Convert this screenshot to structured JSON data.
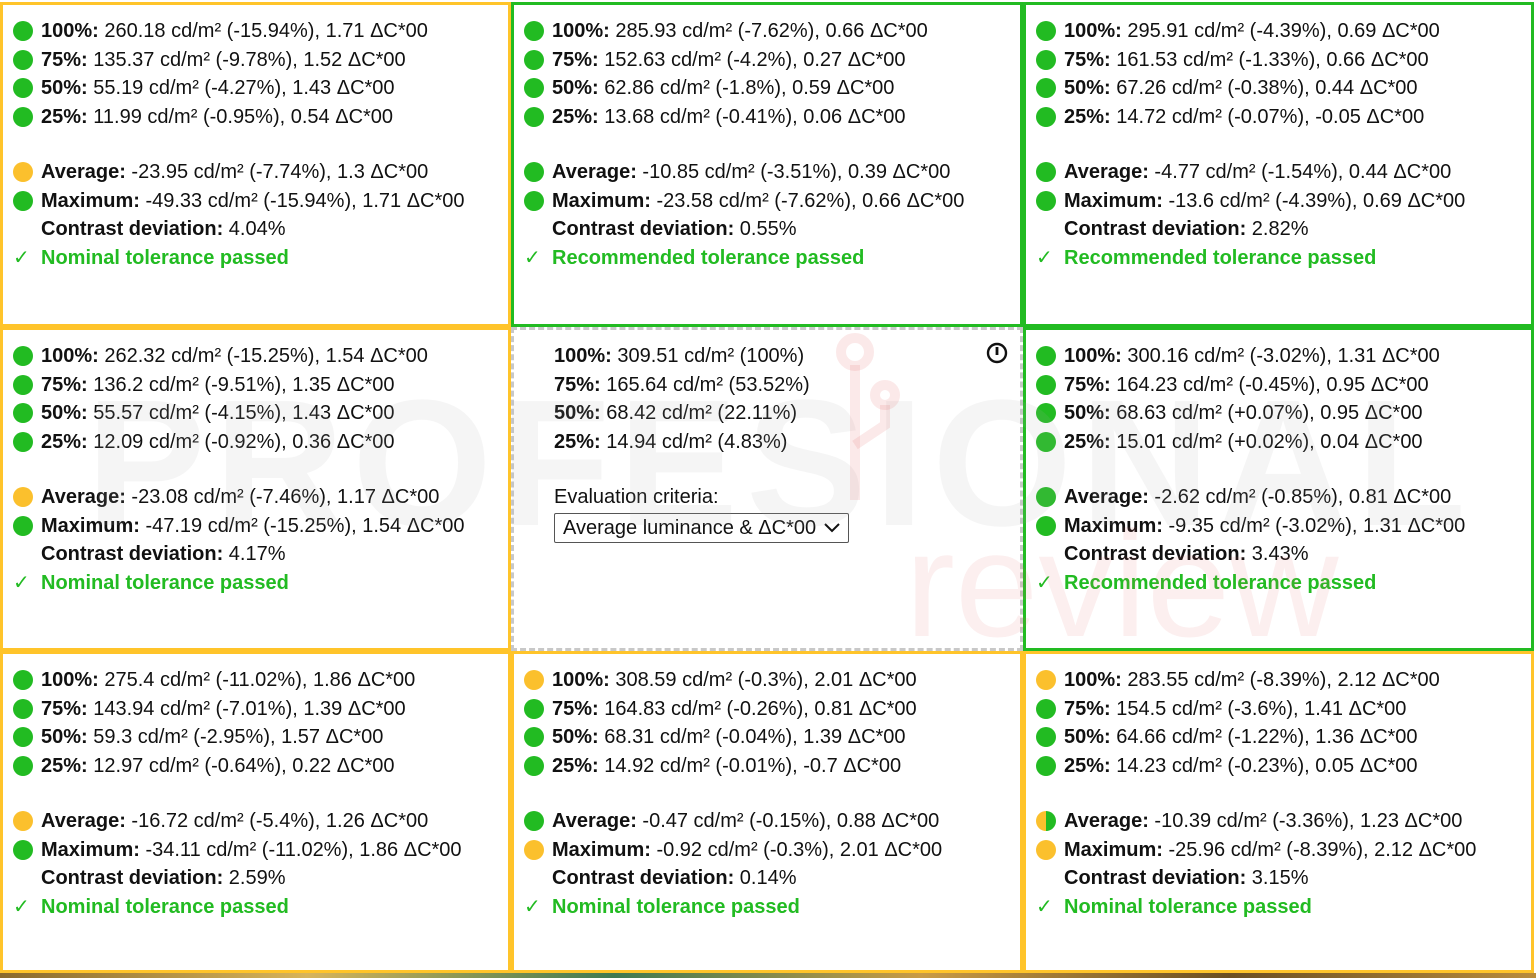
{
  "cells": [
    {
      "lines": [
        {
          "dot": "green",
          "label": "100%:",
          "value": " 260.18 cd/m² (-15.94%), 1.71 ΔC*00"
        },
        {
          "dot": "green",
          "label": "75%:",
          "value": " 135.37 cd/m² (-9.78%), 1.52 ΔC*00"
        },
        {
          "dot": "green",
          "label": "50%:",
          "value": " 55.19 cd/m² (-4.27%), 1.43 ΔC*00"
        },
        {
          "dot": "green",
          "label": "25%:",
          "value": " 11.99 cd/m² (-0.95%), 0.54 ΔC*00"
        }
      ],
      "average": {
        "dot": "yellow",
        "label": "Average:",
        "value": " -23.95 cd/m² (-7.74%), 1.3 ΔC*00"
      },
      "maximum": {
        "dot": "green",
        "label": "Maximum:",
        "value": " -49.33 cd/m² (-15.94%), 1.71 ΔC*00"
      },
      "contrast": {
        "label": "Contrast deviation:",
        "value": " 4.04%"
      },
      "result": "Nominal tolerance passed"
    },
    {
      "lines": [
        {
          "dot": "green",
          "label": "100%:",
          "value": " 285.93 cd/m² (-7.62%), 0.66 ΔC*00"
        },
        {
          "dot": "green",
          "label": "75%:",
          "value": " 152.63 cd/m² (-4.2%), 0.27 ΔC*00"
        },
        {
          "dot": "green",
          "label": "50%:",
          "value": " 62.86 cd/m² (-1.8%), 0.59 ΔC*00"
        },
        {
          "dot": "green",
          "label": "25%:",
          "value": " 13.68 cd/m² (-0.41%), 0.06 ΔC*00"
        }
      ],
      "average": {
        "dot": "green",
        "label": "Average:",
        "value": " -10.85 cd/m² (-3.51%), 0.39 ΔC*00"
      },
      "maximum": {
        "dot": "green",
        "label": "Maximum:",
        "value": " -23.58 cd/m² (-7.62%), 0.66 ΔC*00"
      },
      "contrast": {
        "label": "Contrast deviation:",
        "value": " 0.55%"
      },
      "result": "Recommended tolerance passed"
    },
    {
      "lines": [
        {
          "dot": "green",
          "label": "100%:",
          "value": " 295.91 cd/m² (-4.39%), 0.69 ΔC*00"
        },
        {
          "dot": "green",
          "label": "75%:",
          "value": " 161.53 cd/m² (-1.33%), 0.66 ΔC*00"
        },
        {
          "dot": "green",
          "label": "50%:",
          "value": " 67.26 cd/m² (-0.38%), 0.44 ΔC*00"
        },
        {
          "dot": "green",
          "label": "25%:",
          "value": " 14.72 cd/m² (-0.07%), -0.05 ΔC*00"
        }
      ],
      "average": {
        "dot": "green",
        "label": "Average:",
        "value": " -4.77 cd/m² (-1.54%), 0.44 ΔC*00"
      },
      "maximum": {
        "dot": "green",
        "label": "Maximum:",
        "value": " -13.6 cd/m² (-4.39%), 0.69 ΔC*00"
      },
      "contrast": {
        "label": "Contrast deviation:",
        "value": " 2.82%"
      },
      "result": "Recommended tolerance passed"
    },
    {
      "lines": [
        {
          "dot": "green",
          "label": "100%:",
          "value": " 262.32 cd/m² (-15.25%), 1.54 ΔC*00"
        },
        {
          "dot": "green",
          "label": "75%:",
          "value": " 136.2 cd/m² (-9.51%), 1.35 ΔC*00"
        },
        {
          "dot": "green",
          "label": "50%:",
          "value": " 55.57 cd/m² (-4.15%), 1.43 ΔC*00"
        },
        {
          "dot": "green",
          "label": "25%:",
          "value": " 12.09 cd/m² (-0.92%), 0.36 ΔC*00"
        }
      ],
      "average": {
        "dot": "yellow",
        "label": "Average:",
        "value": " -23.08 cd/m² (-7.46%), 1.17 ΔC*00"
      },
      "maximum": {
        "dot": "green",
        "label": "Maximum:",
        "value": " -47.19 cd/m² (-15.25%), 1.54 ΔC*00"
      },
      "contrast": {
        "label": "Contrast deviation:",
        "value": " 4.17%"
      },
      "result": "Nominal tolerance passed"
    },
    {
      "center": true,
      "lines": [
        {
          "label": "100%:",
          "value": " 309.51 cd/m² (100%)"
        },
        {
          "label": "75%:",
          "value": " 165.64 cd/m² (53.52%)"
        },
        {
          "label": "50%:",
          "value": " 68.42 cd/m² (22.11%)"
        },
        {
          "label": "25%:",
          "value": " 14.94 cd/m² (4.83%)"
        }
      ],
      "eval_label": "Evaluation criteria:",
      "eval_value": "Average luminance & ΔC*00"
    },
    {
      "lines": [
        {
          "dot": "green",
          "label": "100%:",
          "value": " 300.16 cd/m² (-3.02%), 1.31 ΔC*00"
        },
        {
          "dot": "green",
          "label": "75%:",
          "value": " 164.23 cd/m² (-0.45%), 0.95 ΔC*00"
        },
        {
          "dot": "green",
          "label": "50%:",
          "value": " 68.63 cd/m² (+0.07%), 0.95 ΔC*00"
        },
        {
          "dot": "green",
          "label": "25%:",
          "value": " 15.01 cd/m² (+0.02%), 0.04 ΔC*00"
        }
      ],
      "average": {
        "dot": "green",
        "label": "Average:",
        "value": " -2.62 cd/m² (-0.85%), 0.81 ΔC*00"
      },
      "maximum": {
        "dot": "green",
        "label": "Maximum:",
        "value": " -9.35 cd/m² (-3.02%), 1.31 ΔC*00"
      },
      "contrast": {
        "label": "Contrast deviation:",
        "value": " 3.43%"
      },
      "result": "Recommended tolerance passed"
    },
    {
      "lines": [
        {
          "dot": "green",
          "label": "100%:",
          "value": " 275.4 cd/m² (-11.02%), 1.86 ΔC*00"
        },
        {
          "dot": "green",
          "label": "75%:",
          "value": " 143.94 cd/m² (-7.01%), 1.39 ΔC*00"
        },
        {
          "dot": "green",
          "label": "50%:",
          "value": " 59.3 cd/m² (-2.95%), 1.57 ΔC*00"
        },
        {
          "dot": "green",
          "label": "25%:",
          "value": " 12.97 cd/m² (-0.64%), 0.22 ΔC*00"
        }
      ],
      "average": {
        "dot": "yellow",
        "label": "Average:",
        "value": " -16.72 cd/m² (-5.4%), 1.26 ΔC*00"
      },
      "maximum": {
        "dot": "green",
        "label": "Maximum:",
        "value": " -34.11 cd/m² (-11.02%), 1.86 ΔC*00"
      },
      "contrast": {
        "label": "Contrast deviation:",
        "value": " 2.59%"
      },
      "result": "Nominal tolerance passed"
    },
    {
      "lines": [
        {
          "dot": "yellow",
          "label": "100%:",
          "value": " 308.59 cd/m² (-0.3%), 2.01 ΔC*00"
        },
        {
          "dot": "green",
          "label": "75%:",
          "value": " 164.83 cd/m² (-0.26%), 0.81 ΔC*00"
        },
        {
          "dot": "green",
          "label": "50%:",
          "value": " 68.31 cd/m² (-0.04%), 1.39 ΔC*00"
        },
        {
          "dot": "green",
          "label": "25%:",
          "value": " 14.92 cd/m² (-0.01%), -0.7 ΔC*00"
        }
      ],
      "average": {
        "dot": "green",
        "label": "Average:",
        "value": " -0.47 cd/m² (-0.15%), 0.88 ΔC*00"
      },
      "maximum": {
        "dot": "yellow",
        "label": "Maximum:",
        "value": " -0.92 cd/m² (-0.3%), 2.01 ΔC*00"
      },
      "contrast": {
        "label": "Contrast deviation:",
        "value": " 0.14%"
      },
      "result": "Nominal tolerance passed"
    },
    {
      "lines": [
        {
          "dot": "yellow",
          "label": "100%:",
          "value": " 283.55 cd/m² (-8.39%), 2.12 ΔC*00"
        },
        {
          "dot": "green",
          "label": "75%:",
          "value": " 154.5 cd/m² (-3.6%), 1.41 ΔC*00"
        },
        {
          "dot": "green",
          "label": "50%:",
          "value": " 64.66 cd/m² (-1.22%), 1.36 ΔC*00"
        },
        {
          "dot": "green",
          "label": "25%:",
          "value": " 14.23 cd/m² (-0.23%), 0.05 ΔC*00"
        }
      ],
      "average": {
        "dot": "half",
        "label": "Average:",
        "value": " -10.39 cd/m² (-3.36%), 1.23 ΔC*00"
      },
      "maximum": {
        "dot": "yellow",
        "label": "Maximum:",
        "value": " -25.96 cd/m² (-8.39%), 2.12 ΔC*00"
      },
      "contrast": {
        "label": "Contrast deviation:",
        "value": " 3.15%"
      },
      "result": "Nominal tolerance passed"
    }
  ],
  "border_status": [
    "yellow",
    "green",
    "green",
    "yellow",
    "center",
    "green",
    "yellow",
    "yellow",
    "yellow"
  ],
  "check_glyph": "✓",
  "info_icon": "power-info-icon",
  "watermark": {
    "word1": "PROFESIONAL",
    "word2": "review"
  },
  "colors": {
    "green": "#22bb22",
    "yellow": "#fbc02d",
    "pass_text": "#22bb22"
  }
}
